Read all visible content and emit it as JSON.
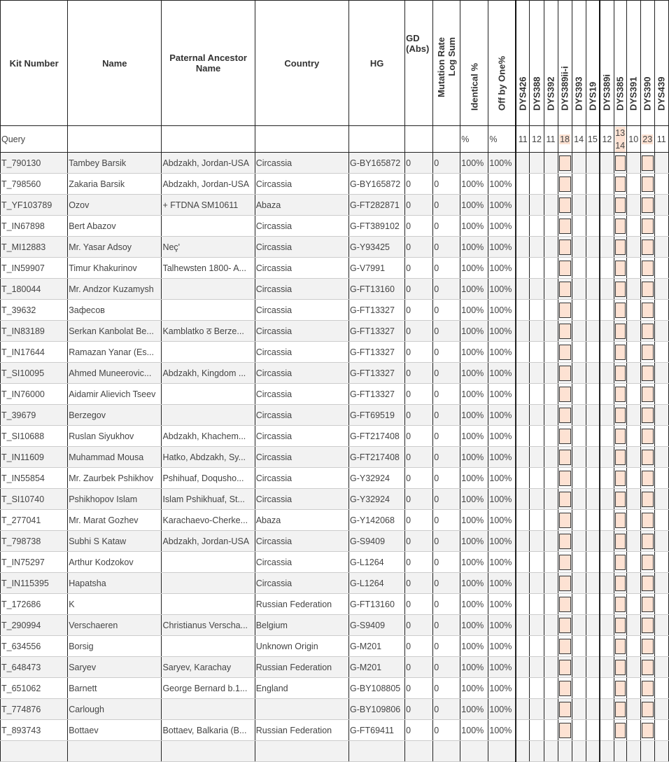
{
  "columns": {
    "kit": "Kit Number",
    "name": "Name",
    "ancestor": "Paternal Ancestor Name",
    "country": "Country",
    "hg": "HG",
    "gd": "GD (Abs)",
    "mutation": "Mutation Rate Log Sum",
    "identical": "Identical %",
    "off_by_one": "Off by One%"
  },
  "markers": [
    "DYS426",
    "DYS388",
    "DYS392",
    "DYS389ii-i",
    "DYS393",
    "DYS19",
    "DYS389i",
    "DYS385",
    "DYS391",
    "DYS390",
    "DYS439"
  ],
  "highlighted_markers": [
    "DYS389ii-i",
    "DYS385",
    "DYS390"
  ],
  "highlight_color": "#fde2d3",
  "query": {
    "label": "Query",
    "identical": "%",
    "off_by_one": "%",
    "values": [
      "11",
      "12",
      "11",
      "18",
      "14",
      "15",
      "12",
      "13\n14",
      "10",
      "23",
      "11"
    ],
    "values_385": [
      "13",
      "14"
    ]
  },
  "rows": [
    [
      "T_790130",
      "Tambey Barsik",
      "Abdzakh, Jordan-USA",
      "Circassia",
      "G-BY165872",
      "0",
      "0",
      "100%",
      "100%"
    ],
    [
      "T_798560",
      "Zakaria Barsik",
      "Abdzakh, Jordan-USA",
      "Circassia",
      "G-BY165872",
      "0",
      "0",
      "100%",
      "100%"
    ],
    [
      "T_YF103789",
      "Ozov",
      "+ FTDNA SM10611",
      "Abaza",
      "G-FT282871",
      "0",
      "0",
      "100%",
      "100%"
    ],
    [
      "T_IN67898",
      "Bert Abazov",
      "",
      "Circassia",
      "G-FT389102",
      "0",
      "0",
      "100%",
      "100%"
    ],
    [
      "T_MI12883",
      "Mr. Yasar Adsoy",
      "Neç'",
      "Circassia",
      "G-Y93425",
      "0",
      "0",
      "100%",
      "100%"
    ],
    [
      "T_IN59907",
      "Timur Khakurinov",
      "Talhewsten 1800- A...",
      "Circassia",
      "G-V7991",
      "0",
      "0",
      "100%",
      "100%"
    ],
    [
      "T_180044",
      "Mr. Andzor Kuzamysh",
      "",
      "Circassia",
      "G-FT13160",
      "0",
      "0",
      "100%",
      "100%"
    ],
    [
      "T_39632",
      "Зафесов",
      "",
      "Circassia",
      "G-FT13327",
      "0",
      "0",
      "100%",
      "100%"
    ],
    [
      "T_IN83189",
      "Serkan Kanbolat Be...",
      "Kamblatko ठ Berze...",
      "Circassia",
      "G-FT13327",
      "0",
      "0",
      "100%",
      "100%"
    ],
    [
      "T_IN17644",
      "Ramazan Yanar (Es...",
      "",
      "Circassia",
      "G-FT13327",
      "0",
      "0",
      "100%",
      "100%"
    ],
    [
      "T_SI10095",
      "Ahmed Muneerovic...",
      "Abdzakh, Kingdom ...",
      "Circassia",
      "G-FT13327",
      "0",
      "0",
      "100%",
      "100%"
    ],
    [
      "T_IN76000",
      "Aidamir Alievich Tseev",
      "",
      "Circassia",
      "G-FT13327",
      "0",
      "0",
      "100%",
      "100%"
    ],
    [
      "T_39679",
      "Berzegov",
      "",
      "Circassia",
      "G-FT69519",
      "0",
      "0",
      "100%",
      "100%"
    ],
    [
      "T_SI10688",
      "Ruslan Siyukhov",
      "Abdzakh, Khachem...",
      "Circassia",
      "G-FT217408",
      "0",
      "0",
      "100%",
      "100%"
    ],
    [
      "T_IN11609",
      "Muhammad Mousa",
      "Hatko, Abdzakh, Sy...",
      "Circassia",
      "G-FT217408",
      "0",
      "0",
      "100%",
      "100%"
    ],
    [
      "T_IN55854",
      "Mr. Zaurbek Pshikhov",
      "Pshihuaf, Doqusho...",
      "Circassia",
      "G-Y32924",
      "0",
      "0",
      "100%",
      "100%"
    ],
    [
      "T_SI10740",
      "Pshikhopov Islam",
      "Islam Pshikhuaf, St...",
      "Circassia",
      "G-Y32924",
      "0",
      "0",
      "100%",
      "100%"
    ],
    [
      "T_277041",
      "Mr. Marat Gozhev",
      "Karachaevo-Cherke...",
      "Abaza",
      "G-Y142068",
      "0",
      "0",
      "100%",
      "100%"
    ],
    [
      "T_798738",
      "Subhi S Kataw",
      "Abdzakh, Jordan-USA",
      "Circassia",
      "G-S9409",
      "0",
      "0",
      "100%",
      "100%"
    ],
    [
      "T_IN75297",
      "Arthur Kodzokov",
      "",
      "Circassia",
      "G-L1264",
      "0",
      "0",
      "100%",
      "100%"
    ],
    [
      "T_IN115395",
      "Hapatsha",
      "",
      "Circassia",
      "G-L1264",
      "0",
      "0",
      "100%",
      "100%"
    ],
    [
      "T_172686",
      "K",
      "",
      "Russian Federation",
      "G-FT13160",
      "0",
      "0",
      "100%",
      "100%"
    ],
    [
      "T_290994",
      "Verschaeren",
      "Christianus Verscha...",
      "Belgium",
      "G-S9409",
      "0",
      "0",
      "100%",
      "100%"
    ],
    [
      "T_634556",
      "Borsig",
      "",
      "Unknown Origin",
      "G-M201",
      "0",
      "0",
      "100%",
      "100%"
    ],
    [
      "T_648473",
      "Saryev",
      "Saryev, Karachay",
      "Russian Federation",
      "G-M201",
      "0",
      "0",
      "100%",
      "100%"
    ],
    [
      "T_651062",
      "Barnett",
      "George Bernard b.1...",
      "England",
      "G-BY108805",
      "0",
      "0",
      "100%",
      "100%"
    ],
    [
      "T_774876",
      "Carlough",
      "",
      "",
      "G-BY109806",
      "0",
      "0",
      "100%",
      "100%"
    ],
    [
      "T_893743",
      "Bottaev",
      "Bottaev, Balkaria (B...",
      "Russian Federation",
      "G-FT69411",
      "0",
      "0",
      "100%",
      "100%"
    ]
  ]
}
